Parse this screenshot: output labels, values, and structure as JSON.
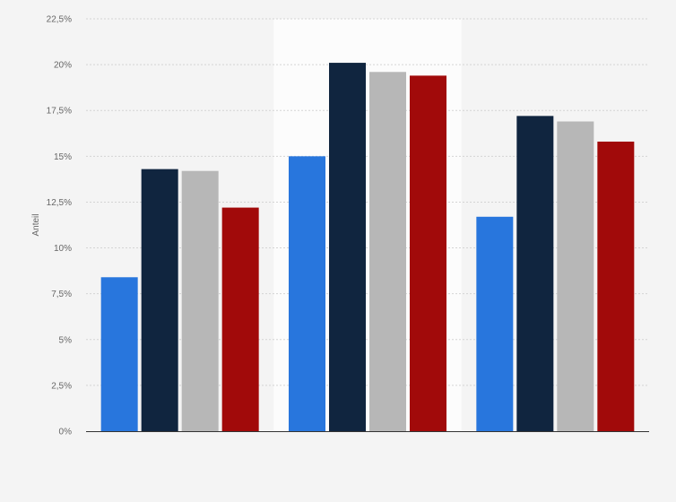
{
  "chart_data": {
    "type": "bar",
    "title": "",
    "xlabel": "",
    "ylabel": "Anteil",
    "categories": [
      "",
      "",
      ""
    ],
    "ylim": [
      0,
      22.5
    ],
    "yticks": [
      "0%",
      "2,5%",
      "5%",
      "7,5%",
      "10%",
      "12,5%",
      "15%",
      "17,5%",
      "20%",
      "22,5%"
    ],
    "grid": true,
    "highlighted_group": 1,
    "series": [
      {
        "color": "#2876dd",
        "values": [
          8.4,
          15.0,
          11.7
        ]
      },
      {
        "color": "#10253f",
        "values": [
          14.3,
          20.1,
          17.2
        ]
      },
      {
        "color": "#b7b7b7",
        "values": [
          14.2,
          19.6,
          16.9
        ]
      },
      {
        "color": "#a10a0a",
        "values": [
          12.2,
          19.4,
          15.8
        ]
      }
    ]
  }
}
